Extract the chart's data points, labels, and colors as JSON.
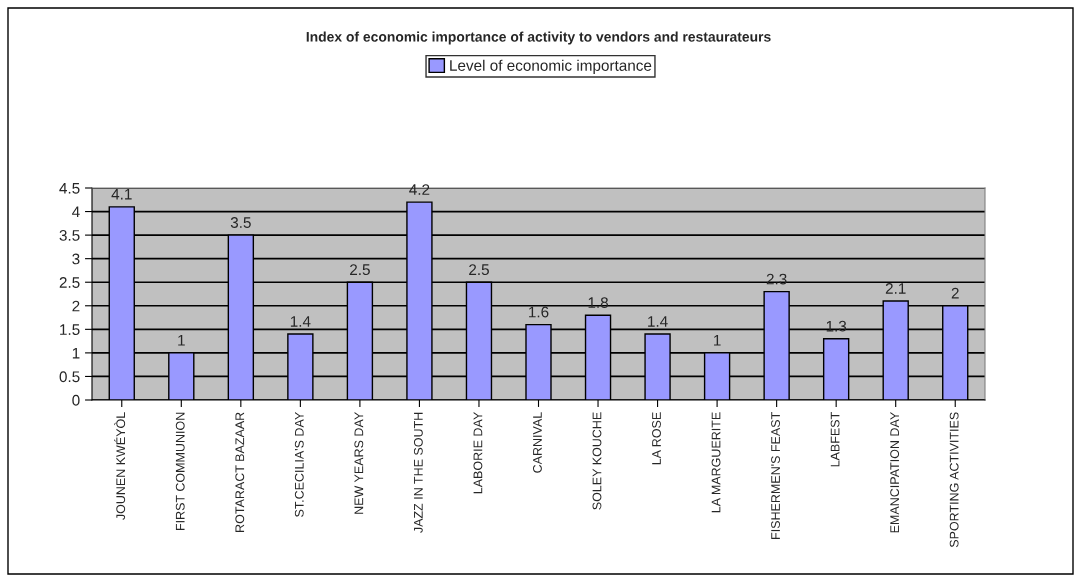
{
  "chart_data": {
    "type": "bar",
    "title": "Index of economic importance of activity to vendors and restaurateurs",
    "categories": [
      "JOUNEN KWÉYÒL",
      "FIRST COMMUNION",
      "ROTARACT BAZAAR",
      "ST.CECILIA'S DAY",
      "NEW YEARS DAY",
      "JAZZ IN THE SOUTH",
      "LABORIE DAY",
      "CARNIVAL",
      "SOLEY KOUCHE",
      "LA ROSE",
      "LA MARGUERITE",
      "FISHERMEN'S FEAST",
      "LABFEST",
      "EMANCIPATION DAY",
      "SPORTING ACTIVITIES"
    ],
    "series": [
      {
        "name": "Level of economic importance",
        "color": "#9999ff",
        "values": [
          4.1,
          1,
          3.5,
          1.4,
          2.5,
          4.2,
          2.5,
          1.6,
          1.8,
          1.4,
          1,
          2.3,
          1.3,
          2.1,
          2
        ]
      }
    ],
    "ylim": [
      0,
      4.5
    ],
    "yticks": [
      0,
      0.5,
      1,
      1.5,
      2,
      2.5,
      3,
      3.5,
      4,
      4.5
    ],
    "grid": "y",
    "legend": "top",
    "data_labels": true
  }
}
